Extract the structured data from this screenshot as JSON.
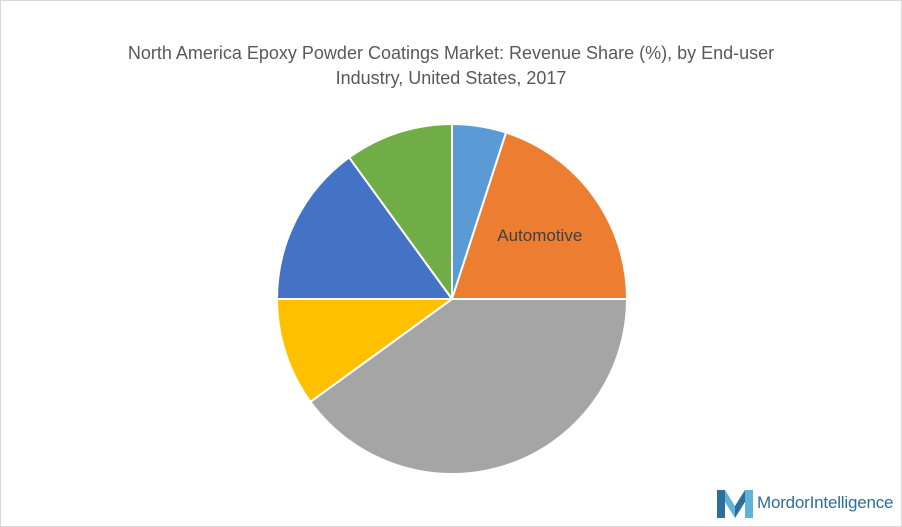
{
  "chart_data": {
    "type": "pie",
    "title_line1": "North America Epoxy Powder Coatings Market: Revenue Share (%), by End-user",
    "title_line2": "Industry, United States, 2017",
    "slices": [
      {
        "label": "",
        "value": 5,
        "color": "#5b9bd5"
      },
      {
        "label": "Automotive",
        "value": 20,
        "color": "#ed7d31"
      },
      {
        "label": "",
        "value": 40,
        "color": "#a5a5a5"
      },
      {
        "label": "",
        "value": 10,
        "color": "#ffc000"
      },
      {
        "label": "",
        "value": 15,
        "color": "#4472c4"
      },
      {
        "label": "",
        "value": 10,
        "color": "#70ad47"
      }
    ],
    "legend": "none"
  },
  "branding": {
    "logo_word1": "Mordor",
    "logo_word2": "Intelligence",
    "logo_color_dark": "#2c6e9e",
    "logo_color_light": "#5fb3d9"
  }
}
